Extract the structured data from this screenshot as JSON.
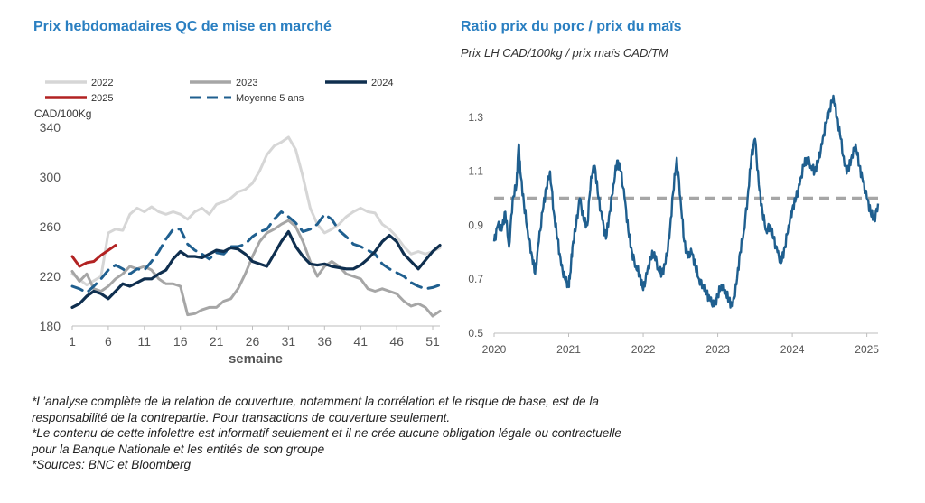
{
  "chart_data": [
    {
      "type": "line",
      "title": "Prix hebdomadaires QC de mise en marché",
      "ylabel": "CAD/100Kg",
      "xlabel": "semaine",
      "ylim": [
        180,
        340
      ],
      "xlim": [
        1,
        52
      ],
      "yticks": [
        180,
        220,
        260,
        300,
        340
      ],
      "xticks": [
        1,
        6,
        11,
        16,
        21,
        26,
        31,
        36,
        41,
        46,
        51
      ],
      "grid": false,
      "legend": "top",
      "series": [
        {
          "name": "2022",
          "color": "#d6d6d6",
          "dash": false,
          "x": [
            1,
            3,
            5,
            6,
            7,
            8,
            9,
            10,
            11,
            12,
            13,
            14,
            15,
            16,
            17,
            18,
            19,
            20,
            21,
            22,
            23,
            24,
            25,
            26,
            27,
            28,
            29,
            30,
            31,
            32,
            33,
            34,
            35,
            36,
            37,
            38,
            39,
            40,
            41,
            42,
            43,
            44,
            45,
            46,
            47,
            48,
            49,
            50,
            51,
            52
          ],
          "y": [
            222,
            213,
            220,
            255,
            258,
            257,
            270,
            275,
            272,
            276,
            272,
            270,
            272,
            270,
            266,
            272,
            275,
            270,
            278,
            280,
            283,
            288,
            290,
            295,
            305,
            318,
            325,
            328,
            332,
            322,
            300,
            275,
            262,
            255,
            258,
            262,
            268,
            272,
            275,
            272,
            271,
            262,
            258,
            252,
            244,
            238,
            240,
            238,
            240,
            243
          ]
        },
        {
          "name": "2023",
          "color": "#a6a6a6",
          "dash": false,
          "x": [
            1,
            2,
            3,
            4,
            5,
            6,
            7,
            8,
            9,
            10,
            11,
            12,
            13,
            14,
            15,
            16,
            17,
            18,
            19,
            20,
            21,
            22,
            23,
            24,
            25,
            26,
            27,
            28,
            29,
            30,
            31,
            32,
            33,
            34,
            35,
            36,
            37,
            38,
            39,
            40,
            41,
            42,
            43,
            44,
            45,
            46,
            47,
            48,
            49,
            50,
            51,
            52
          ],
          "y": [
            224,
            216,
            222,
            210,
            208,
            212,
            218,
            222,
            228,
            226,
            228,
            225,
            218,
            214,
            214,
            212,
            189,
            190,
            193,
            195,
            195,
            200,
            202,
            210,
            222,
            236,
            248,
            255,
            258,
            262,
            265,
            260,
            248,
            232,
            220,
            228,
            232,
            228,
            222,
            220,
            218,
            210,
            208,
            210,
            208,
            206,
            200,
            196,
            198,
            195,
            188,
            192
          ]
        },
        {
          "name": "2024",
          "color": "#0f2f4f",
          "dash": false,
          "x": [
            1,
            2,
            3,
            4,
            5,
            6,
            7,
            8,
            9,
            10,
            11,
            12,
            13,
            14,
            15,
            16,
            17,
            18,
            19,
            20,
            21,
            22,
            23,
            24,
            25,
            26,
            27,
            28,
            29,
            30,
            31,
            32,
            33,
            34,
            35,
            36,
            37,
            38,
            39,
            40,
            41,
            42,
            43,
            44,
            45,
            46,
            47,
            48,
            49,
            50,
            51,
            52
          ],
          "y": [
            195,
            198,
            204,
            208,
            206,
            202,
            208,
            214,
            212,
            215,
            218,
            218,
            222,
            225,
            234,
            240,
            236,
            236,
            235,
            238,
            241,
            240,
            243,
            242,
            238,
            232,
            230,
            228,
            238,
            248,
            256,
            244,
            236,
            230,
            229,
            230,
            228,
            227,
            226,
            226,
            229,
            234,
            240,
            248,
            253,
            248,
            238,
            232,
            226,
            233,
            240,
            245
          ]
        },
        {
          "name": "2025",
          "color": "#b22222",
          "dash": false,
          "x": [
            1,
            2,
            3,
            4,
            5,
            6,
            7
          ],
          "y": [
            236,
            228,
            231,
            232,
            237,
            241,
            245
          ]
        },
        {
          "name": "Moyenne 5 ans",
          "color": "#1f5f8f",
          "dash": true,
          "x": [
            1,
            2,
            3,
            4,
            5,
            6,
            7,
            8,
            9,
            10,
            11,
            12,
            13,
            14,
            15,
            16,
            17,
            18,
            19,
            20,
            21,
            22,
            23,
            24,
            25,
            26,
            27,
            28,
            29,
            30,
            31,
            32,
            33,
            34,
            35,
            36,
            37,
            38,
            39,
            40,
            41,
            42,
            43,
            44,
            45,
            46,
            47,
            48,
            49,
            50,
            51,
            52
          ],
          "y": [
            212,
            210,
            207,
            212,
            218,
            225,
            229,
            226,
            222,
            226,
            225,
            232,
            240,
            250,
            258,
            258,
            246,
            241,
            238,
            234,
            239,
            238,
            244,
            244,
            246,
            252,
            256,
            258,
            266,
            272,
            268,
            263,
            256,
            258,
            262,
            270,
            266,
            257,
            252,
            246,
            244,
            241,
            238,
            230,
            226,
            223,
            220,
            215,
            212,
            210,
            211,
            213
          ]
        }
      ]
    },
    {
      "type": "line",
      "title": "Ratio prix du porc / prix du maïs",
      "subtitle": "Prix LH CAD/100kg / prix maïs CAD/TM",
      "ylim": [
        0.5,
        1.4
      ],
      "xlim": [
        2020.0,
        2025.15
      ],
      "yticks": [
        0.5,
        0.7,
        0.9,
        1.1,
        1.3
      ],
      "ytick_labels": [
        "0.5",
        "0.7",
        "0.9",
        "1.1",
        "1.3"
      ],
      "xticks": [
        2020,
        2021,
        2022,
        2023,
        2024,
        2025
      ],
      "grid": false,
      "reference_line": {
        "value": 1.0,
        "color": "#a6a6a6",
        "dash": true
      },
      "series": [
        {
          "color": "#1f5f8f",
          "x": [
            2020.0,
            2020.05,
            2020.1,
            2020.15,
            2020.2,
            2020.25,
            2020.3,
            2020.33,
            2020.35,
            2020.4,
            2020.45,
            2020.5,
            2020.55,
            2020.6,
            2020.65,
            2020.7,
            2020.75,
            2020.8,
            2020.85,
            2020.9,
            2020.95,
            2021.0,
            2021.02,
            2021.05,
            2021.1,
            2021.15,
            2021.2,
            2021.25,
            2021.3,
            2021.35,
            2021.4,
            2021.45,
            2021.5,
            2021.55,
            2021.6,
            2021.65,
            2021.7,
            2021.75,
            2021.8,
            2021.85,
            2021.9,
            2021.95,
            2022.0,
            2022.05,
            2022.1,
            2022.15,
            2022.2,
            2022.25,
            2022.3,
            2022.35,
            2022.4,
            2022.45,
            2022.5,
            2022.55,
            2022.6,
            2022.65,
            2022.7,
            2022.75,
            2022.8,
            2022.85,
            2022.9,
            2022.95,
            2023.0,
            2023.05,
            2023.1,
            2023.15,
            2023.2,
            2023.25,
            2023.3,
            2023.35,
            2023.4,
            2023.45,
            2023.5,
            2023.55,
            2023.6,
            2023.65,
            2023.7,
            2023.75,
            2023.8,
            2023.85,
            2023.9,
            2023.95,
            2024.0,
            2024.05,
            2024.1,
            2024.15,
            2024.2,
            2024.25,
            2024.3,
            2024.35,
            2024.4,
            2024.45,
            2024.5,
            2024.55,
            2024.6,
            2024.65,
            2024.7,
            2024.75,
            2024.8,
            2024.85,
            2024.9,
            2024.95,
            2025.0,
            2025.05,
            2025.1,
            2025.15
          ],
          "y": [
            0.84,
            0.9,
            0.88,
            0.95,
            0.82,
            1.0,
            1.05,
            1.2,
            1.1,
            0.98,
            0.88,
            0.8,
            0.72,
            0.84,
            0.95,
            1.04,
            1.1,
            0.95,
            0.85,
            0.75,
            0.7,
            0.68,
            0.72,
            0.82,
            0.9,
            1.0,
            0.92,
            0.9,
            1.08,
            1.12,
            1.0,
            0.92,
            0.85,
            0.95,
            1.05,
            1.14,
            1.1,
            1.0,
            0.88,
            0.8,
            0.75,
            0.72,
            0.66,
            0.72,
            0.78,
            0.8,
            0.74,
            0.72,
            0.76,
            0.85,
            1.02,
            1.15,
            1.0,
            0.84,
            0.78,
            0.8,
            0.75,
            0.7,
            0.68,
            0.65,
            0.62,
            0.6,
            0.64,
            0.68,
            0.66,
            0.62,
            0.6,
            0.68,
            0.8,
            0.88,
            1.0,
            1.15,
            1.22,
            1.05,
            0.95,
            0.88,
            0.9,
            0.85,
            0.8,
            0.76,
            0.82,
            0.9,
            0.96,
            1.0,
            1.05,
            1.12,
            1.15,
            1.12,
            1.1,
            1.14,
            1.2,
            1.28,
            1.33,
            1.38,
            1.3,
            1.22,
            1.12,
            1.1,
            1.16,
            1.2,
            1.12,
            1.06,
            1.0,
            0.95,
            0.92,
            0.98
          ]
        }
      ]
    }
  ],
  "footnotes": [
    "*L’analyse complète de la relation de couverture, notamment la corrélation et le risque de base, est de la",
    "responsabilité de la contrepartie. Pour transactions de couverture seulement.",
    "*Le contenu de cette infolettre est informatif seulement et il ne crée aucune obligation légale ou contractuelle",
    "pour la Banque Nationale et les entités de son groupe",
    "*Sources: BNC et Bloomberg"
  ]
}
